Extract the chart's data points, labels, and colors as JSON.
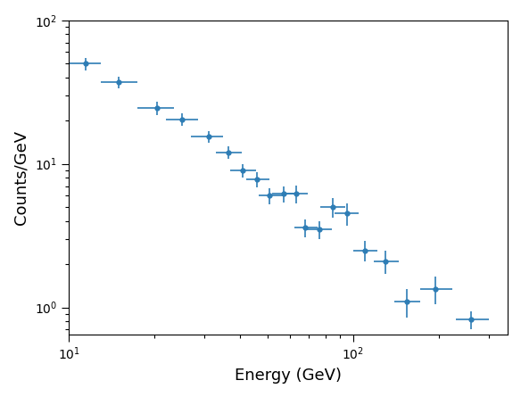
{
  "title": "",
  "xlabel": "Energy (GeV)",
  "ylabel": "Counts/GeV",
  "x": [
    11.5,
    15.0,
    20.5,
    25.0,
    31.0,
    36.5,
    41.0,
    46.0,
    51.0,
    57.0,
    63.0,
    68.0,
    76.0,
    85.0,
    95.0,
    110.0,
    130.0,
    155.0,
    195.0,
    260.0
  ],
  "y": [
    50.0,
    37.0,
    24.5,
    20.5,
    15.5,
    12.0,
    9.0,
    7.8,
    6.0,
    6.2,
    6.2,
    3.6,
    3.5,
    5.0,
    4.5,
    2.5,
    2.1,
    1.1,
    1.35,
    0.82
  ],
  "xerr_lo": [
    1.5,
    2.0,
    3.0,
    3.0,
    4.0,
    3.5,
    4.0,
    4.0,
    4.5,
    5.0,
    5.5,
    6.0,
    7.0,
    8.0,
    9.0,
    10.0,
    12.0,
    15.0,
    22.0,
    30.0
  ],
  "xerr_hi": [
    1.5,
    2.5,
    3.0,
    3.5,
    4.0,
    4.0,
    4.5,
    5.0,
    5.5,
    6.0,
    6.5,
    7.0,
    8.0,
    9.0,
    10.0,
    12.0,
    15.0,
    18.0,
    28.0,
    40.0
  ],
  "yerr_lo": [
    5.0,
    3.5,
    2.5,
    2.0,
    1.5,
    1.2,
    1.0,
    0.9,
    0.8,
    0.8,
    0.9,
    0.5,
    0.5,
    0.8,
    0.8,
    0.4,
    0.4,
    0.25,
    0.3,
    0.12
  ],
  "yerr_hi": [
    5.0,
    3.5,
    2.5,
    2.0,
    1.5,
    1.2,
    1.0,
    0.9,
    0.8,
    0.8,
    0.9,
    0.5,
    0.5,
    0.8,
    0.8,
    0.4,
    0.4,
    0.25,
    0.3,
    0.12
  ],
  "color": "#2e7db5",
  "xlim": [
    10,
    350
  ],
  "ylim": [
    0.65,
    100
  ],
  "marker": "o",
  "markersize": 3.5,
  "capsize": 0,
  "linewidth": 1.2
}
